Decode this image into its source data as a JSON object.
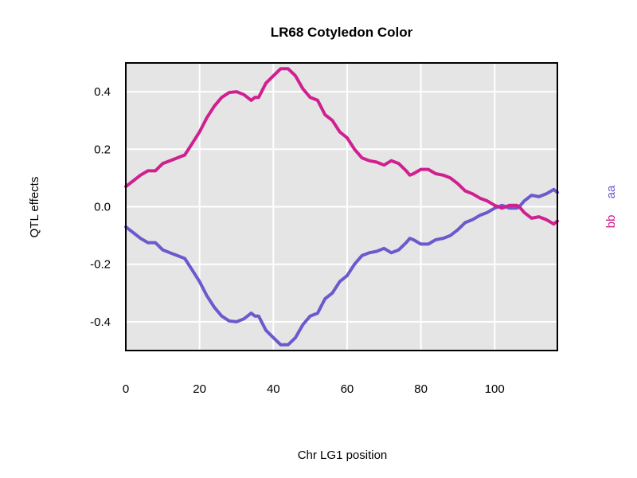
{
  "chart_data": {
    "type": "line",
    "title": "LR68 Cotyledon Color",
    "xlabel": "Chr LG1 position",
    "ylabel": "QTL effects",
    "xlim": [
      0,
      117
    ],
    "ylim": [
      -0.5,
      0.5
    ],
    "x_ticks": [
      0,
      20,
      40,
      60,
      80,
      100
    ],
    "y_ticks": [
      0.4,
      0.2,
      0.0,
      -0.2,
      -0.4
    ],
    "y_tick_labels": [
      "0.4",
      "0.2",
      "0.0",
      "-0.2",
      "-0.4"
    ],
    "grid": true,
    "background": "#e5e5e5",
    "legend_placement": "right",
    "series": [
      {
        "name": "aa",
        "color": "#6a5acd",
        "x": [
          0,
          2,
          4,
          6,
          8,
          10,
          12,
          14,
          16,
          18,
          20,
          22,
          24,
          26,
          28,
          30,
          32,
          34,
          35,
          36,
          38,
          40,
          42,
          44,
          46,
          48,
          50,
          52,
          54,
          56,
          58,
          60,
          62,
          64,
          66,
          68,
          70,
          72,
          74,
          76,
          77,
          78,
          80,
          82,
          84,
          86,
          88,
          90,
          92,
          94,
          96,
          98,
          100,
          102,
          104,
          106,
          107,
          108,
          110,
          112,
          114,
          116,
          117
        ],
        "values": [
          -0.07,
          -0.09,
          -0.11,
          -0.125,
          -0.125,
          -0.15,
          -0.16,
          -0.17,
          -0.18,
          -0.22,
          -0.26,
          -0.31,
          -0.35,
          -0.38,
          -0.397,
          -0.4,
          -0.39,
          -0.37,
          -0.38,
          -0.38,
          -0.43,
          -0.455,
          -0.48,
          -0.48,
          -0.455,
          -0.41,
          -0.38,
          -0.37,
          -0.32,
          -0.3,
          -0.26,
          -0.24,
          -0.2,
          -0.17,
          -0.16,
          -0.155,
          -0.145,
          -0.16,
          -0.15,
          -0.125,
          -0.11,
          -0.115,
          -0.13,
          -0.13,
          -0.115,
          -0.11,
          -0.1,
          -0.08,
          -0.055,
          -0.045,
          -0.03,
          -0.02,
          -0.005,
          0.005,
          -0.005,
          -0.005,
          0.005,
          0.02,
          0.04,
          0.035,
          0.045,
          0.06,
          0.05
        ]
      },
      {
        "name": "bb",
        "color": "#d02090",
        "x": [
          0,
          2,
          4,
          6,
          8,
          10,
          12,
          14,
          16,
          18,
          20,
          22,
          24,
          26,
          28,
          30,
          32,
          34,
          35,
          36,
          38,
          40,
          42,
          44,
          46,
          48,
          50,
          52,
          54,
          56,
          58,
          60,
          62,
          64,
          66,
          68,
          70,
          72,
          74,
          76,
          77,
          78,
          80,
          82,
          84,
          86,
          88,
          90,
          92,
          94,
          96,
          98,
          100,
          102,
          104,
          106,
          107,
          108,
          110,
          112,
          114,
          116,
          117
        ],
        "values": [
          0.07,
          0.09,
          0.11,
          0.125,
          0.125,
          0.15,
          0.16,
          0.17,
          0.18,
          0.22,
          0.26,
          0.31,
          0.35,
          0.38,
          0.397,
          0.4,
          0.39,
          0.37,
          0.38,
          0.38,
          0.43,
          0.455,
          0.48,
          0.48,
          0.455,
          0.41,
          0.38,
          0.37,
          0.32,
          0.3,
          0.26,
          0.24,
          0.2,
          0.17,
          0.16,
          0.155,
          0.145,
          0.16,
          0.15,
          0.125,
          0.11,
          0.115,
          0.13,
          0.13,
          0.115,
          0.11,
          0.1,
          0.08,
          0.055,
          0.045,
          0.03,
          0.02,
          0.005,
          -0.005,
          0.005,
          0.005,
          -0.005,
          -0.02,
          -0.04,
          -0.035,
          -0.045,
          -0.06,
          -0.05
        ]
      }
    ]
  }
}
